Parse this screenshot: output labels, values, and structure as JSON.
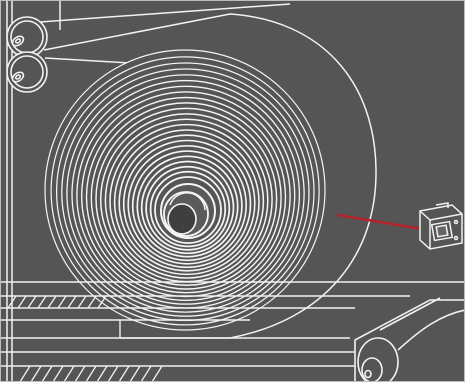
{
  "illustration": {
    "subject": "roll-diameter-sensor-diagram",
    "colors": {
      "background": "#555555",
      "line": "#f4f4f4",
      "beam": "#b8202a",
      "hub": "#5a5a5a"
    },
    "roll": {
      "rings": 24
    },
    "sensor": {
      "label": ""
    }
  }
}
